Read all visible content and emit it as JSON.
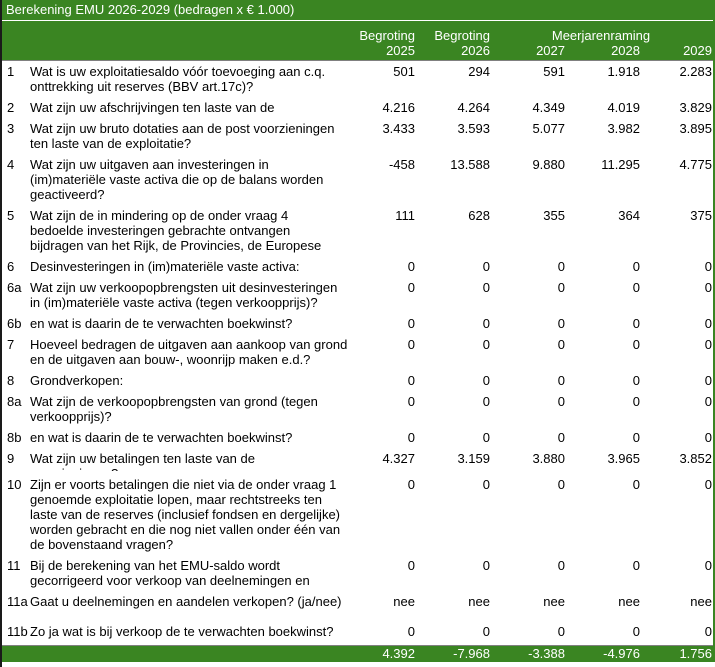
{
  "title": "Berekening EMU 2026-2029 (bedragen x € 1.000)",
  "header": {
    "col_groups": [
      "Begroting",
      "Begroting",
      "Meerjarenraming"
    ],
    "years": [
      "2025",
      "2026",
      "2027",
      "2028",
      "2029"
    ]
  },
  "rows": [
    {
      "num": "1",
      "lines": [
        "Wat is uw exploitatiesaldo vóór toevoeging aan c.q.",
        "onttrekking uit reserves (BBV art.17c)?"
      ],
      "values": [
        "501",
        "294",
        "591",
        "1.918",
        "2.283"
      ]
    },
    {
      "num": "2",
      "lines": [
        "Wat zijn uw afschrijvingen ten laste van de"
      ],
      "values": [
        "4.216",
        "4.264",
        "4.349",
        "4.019",
        "3.829"
      ]
    },
    {
      "num": "3",
      "lines": [
        "Wat zijn uw bruto dotaties aan de post voorzieningen",
        "ten laste van de exploitatie?"
      ],
      "values": [
        "3.433",
        "3.593",
        "5.077",
        "3.982",
        "3.895"
      ]
    },
    {
      "num": "4",
      "lines": [
        "Wat zijn uw uitgaven aan investeringen in",
        "(im)materiële vaste activa die op de balans worden",
        "geactiveerd?"
      ],
      "values": [
        "-458",
        "13.588",
        "9.880",
        "11.295",
        "4.775"
      ]
    },
    {
      "num": "5",
      "lines": [
        "Wat zijn de in mindering op de onder vraag 4",
        "bedoelde investeringen gebrachte ontvangen",
        "bijdragen van het Rijk, de Provincies, de Europese"
      ],
      "values": [
        "111",
        "628",
        "355",
        "364",
        "375"
      ]
    },
    {
      "num": "6",
      "lines": [
        "Desinvesteringen in (im)materiële vaste activa:"
      ],
      "values": [
        "0",
        "0",
        "0",
        "0",
        "0"
      ]
    },
    {
      "num": "6a",
      "lines": [
        "Wat zijn uw verkoopopbrengsten uit desinvesteringen",
        "in (im)materiële vaste activa (tegen verkoopprijs)?"
      ],
      "values": [
        "0",
        "0",
        "0",
        "0",
        "0"
      ]
    },
    {
      "num": "6b",
      "lines": [
        "en wat is daarin de te verwachten boekwinst?"
      ],
      "values": [
        "0",
        "0",
        "0",
        "0",
        "0"
      ]
    },
    {
      "num": "7",
      "lines": [
        "Hoeveel bedragen de uitgaven aan aankoop van grond",
        "en de uitgaven aan bouw-, woonrijp maken e.d.?"
      ],
      "values": [
        "0",
        "0",
        "0",
        "0",
        "0"
      ]
    },
    {
      "num": "8",
      "lines": [
        "Grondverkopen:"
      ],
      "values": [
        "0",
        "0",
        "0",
        "0",
        "0"
      ]
    },
    {
      "num": "8a",
      "lines": [
        "Wat zijn de verkoopopbrengsten van grond (tegen",
        "verkoopprijs)?"
      ],
      "values": [
        "0",
        "0",
        "0",
        "0",
        "0"
      ]
    },
    {
      "num": "8b",
      "lines": [
        "en wat is daarin de te verwachten boekwinst?"
      ],
      "values": [
        "0",
        "0",
        "0",
        "0",
        "0"
      ]
    },
    {
      "num": "9",
      "lines": [
        "Wat zijn uw betalingen ten laste van de"
      ],
      "clipped": "voorzieningen?",
      "values": [
        "4.327",
        "3.159",
        "3.880",
        "3.965",
        "3.852"
      ]
    },
    {
      "num": "10",
      "lines": [
        "Zijn er voorts betalingen die niet via de onder vraag 1",
        "genoemde exploitatie lopen, maar rechtstreeks ten",
        "laste van de reserves (inclusief fondsen en dergelijke)",
        "worden gebracht en die nog niet vallen onder één van",
        "de bovenstaand vragen?"
      ],
      "values": [
        "0",
        "0",
        "0",
        "0",
        "0"
      ]
    },
    {
      "num": "11",
      "lines": [
        "Bij de berekening van het EMU-saldo wordt",
        "gecorrigeerd voor verkoop van deelnemingen en"
      ],
      "values": [
        "0",
        "0",
        "0",
        "0",
        "0"
      ]
    },
    {
      "num": "11a",
      "lines": [
        "Gaat u deelnemingen en aandelen verkopen? (ja/nee)"
      ],
      "values": [
        "nee",
        "nee",
        "nee",
        "nee",
        "nee"
      ],
      "gap_after": true
    },
    {
      "num": "11b",
      "lines": [
        "Zo ja wat is bij verkoop de te verwachten boekwinst?"
      ],
      "values": [
        "0",
        "0",
        "0",
        "0",
        "0"
      ]
    }
  ],
  "totals": [
    "4.392",
    "-7.968",
    "-3.388",
    "-4.976",
    "1.756"
  ],
  "colors": {
    "header_green": "#3A8522",
    "border_dark": "#1a1a1a",
    "divider_gray": "#808080",
    "header_text": "#ffffff",
    "body_text": "#000000"
  }
}
